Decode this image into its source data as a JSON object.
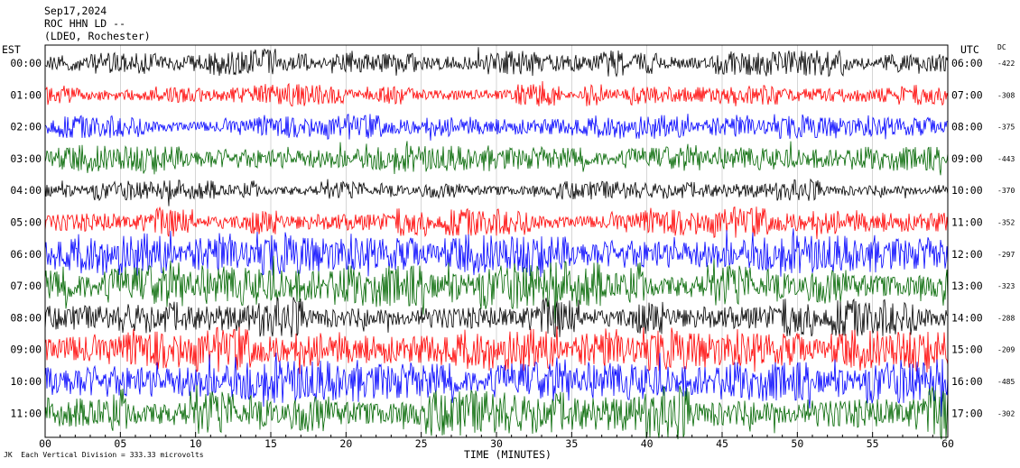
{
  "header": {
    "date": "Sep17,2024",
    "station": "ROC HHN LD --",
    "network": "(LDEO, Rochester)"
  },
  "chart_data": {
    "type": "line",
    "title": "",
    "left_axis_label": "EST",
    "right_axis_label": "UTC",
    "dc_label": "DC",
    "xlabel": "TIME (MINUTES)",
    "xlim": [
      0,
      60
    ],
    "x_ticks": [
      0,
      5,
      10,
      15,
      20,
      25,
      30,
      35,
      40,
      45,
      50,
      55,
      60
    ],
    "x_tick_labels": [
      "00",
      "05",
      "10",
      "15",
      "20",
      "25",
      "30",
      "35",
      "40",
      "45",
      "50",
      "55",
      "60"
    ],
    "rows": [
      {
        "est": "00:00",
        "utc": "06:00",
        "dc": "-422",
        "color": "#000000",
        "amplitude": 1.0
      },
      {
        "est": "01:00",
        "utc": "07:00",
        "dc": "-308",
        "color": "#ff0000",
        "amplitude": 0.8
      },
      {
        "est": "02:00",
        "utc": "08:00",
        "dc": "-375",
        "color": "#0000ff",
        "amplitude": 0.9
      },
      {
        "est": "03:00",
        "utc": "09:00",
        "dc": "-443",
        "color": "#006600",
        "amplitude": 1.1
      },
      {
        "est": "04:00",
        "utc": "10:00",
        "dc": "-370",
        "color": "#000000",
        "amplitude": 0.8
      },
      {
        "est": "05:00",
        "utc": "11:00",
        "dc": "-352",
        "color": "#ff0000",
        "amplitude": 1.1
      },
      {
        "est": "06:00",
        "utc": "12:00",
        "dc": "-297",
        "color": "#0000ff",
        "amplitude": 1.6
      },
      {
        "est": "07:00",
        "utc": "13:00",
        "dc": "-323",
        "color": "#006600",
        "amplitude": 1.9
      },
      {
        "est": "08:00",
        "utc": "14:00",
        "dc": "-288",
        "color": "#000000",
        "amplitude": 1.5
      },
      {
        "est": "09:00",
        "utc": "15:00",
        "dc": "-209",
        "color": "#ff0000",
        "amplitude": 1.6
      },
      {
        "est": "10:00",
        "utc": "16:00",
        "dc": "-485",
        "color": "#0000ff",
        "amplitude": 1.8
      },
      {
        "est": "11:00",
        "utc": "17:00",
        "dc": "-302",
        "color": "#006600",
        "amplitude": 2.0
      }
    ],
    "grid": true,
    "footnote": "Each Vertical Division = 333.33 microvolts",
    "footnote_prefix": "JK"
  }
}
